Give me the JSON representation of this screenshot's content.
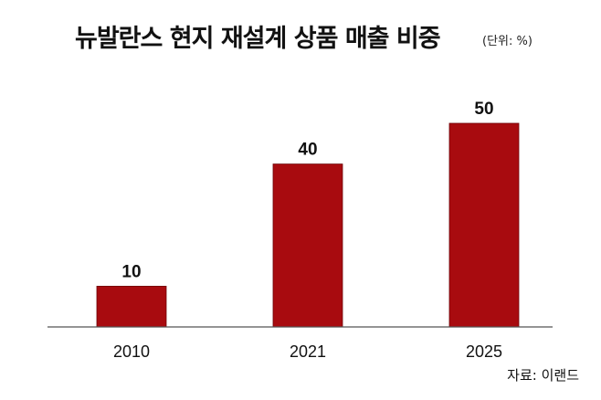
{
  "header": {
    "title": "뉴발란스 현지 재설계 상품 매출 비중",
    "unit": "(단위: %)"
  },
  "footer": {
    "source": "자료: 이랜드"
  },
  "colors": {
    "bar": "#a80b0f",
    "bar_stroke": "#6e0508",
    "axis": "#555555"
  },
  "chart_data": {
    "type": "bar",
    "title": "뉴발란스 현지 재설계 상품 매출 비중",
    "unit": "%",
    "categories": [
      "2010",
      "2021",
      "2025"
    ],
    "values": [
      10,
      40,
      50
    ],
    "ylim": [
      0,
      55
    ],
    "grid": false,
    "legend": "none"
  }
}
